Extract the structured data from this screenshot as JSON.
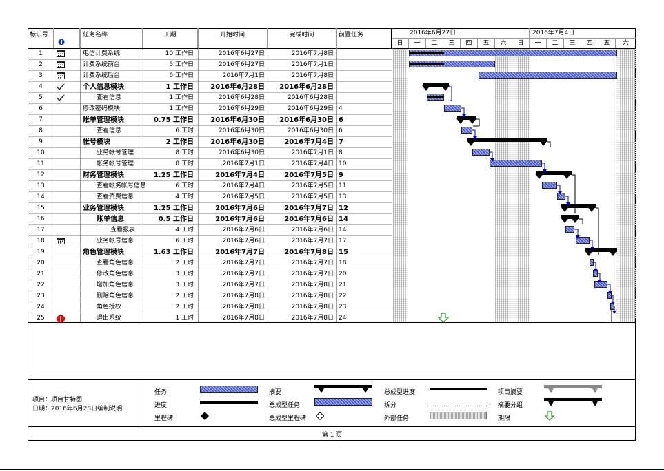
{
  "columns": {
    "id": "标识号",
    "name": "任务名称",
    "duration": "工期",
    "start": "开始时间",
    "finish": "完成时间",
    "predecessors": "前置任务"
  },
  "weeks": [
    "2016年6月27日",
    "2016年7月4日"
  ],
  "days": [
    "日",
    "一",
    "二",
    "三",
    "四",
    "五",
    "六",
    "日",
    "一",
    "二",
    "三",
    "四",
    "五",
    "六"
  ],
  "tasks": [
    {
      "id": "1",
      "name": "电信计费系统",
      "duration": "10 工作日",
      "start": "2016年6月27日",
      "finish": "2016年7月8日",
      "pred": "",
      "bold": false,
      "indent": 0,
      "indicator": "calendar"
    },
    {
      "id": "2",
      "name": "计费系统前台",
      "duration": "5 工作日",
      "start": "2016年6月27日",
      "finish": "2016年7月1日",
      "pred": "",
      "bold": false,
      "indent": 0,
      "indicator": "calendar"
    },
    {
      "id": "3",
      "name": "计费系统后台",
      "duration": "6 工作日",
      "start": "2016年7月1日",
      "finish": "2016年7月8日",
      "pred": "",
      "bold": false,
      "indent": 0,
      "indicator": "calendar"
    },
    {
      "id": "4",
      "name": "个人信息模块",
      "duration": "1 工作日",
      "start": "2016年6月28日",
      "finish": "2016年6月28日",
      "pred": "",
      "bold": true,
      "indent": 0,
      "indicator": "check"
    },
    {
      "id": "5",
      "name": "查看信息",
      "duration": "1 工作日",
      "start": "2016年6月28日",
      "finish": "2016年6月28日",
      "pred": "",
      "bold": false,
      "indent": 1,
      "indicator": "check"
    },
    {
      "id": "6",
      "name": "修改密码模块",
      "duration": "1 工作日",
      "start": "2016年6月29日",
      "finish": "2016年6月29日",
      "pred": "4",
      "bold": false,
      "indent": 0,
      "indicator": ""
    },
    {
      "id": "7",
      "name": "账单管理模块",
      "duration": "0.75 工作日",
      "start": "2016年6月30日",
      "finish": "2016年6月30日",
      "pred": "6",
      "bold": true,
      "indent": 0,
      "indicator": ""
    },
    {
      "id": "8",
      "name": "查看信息",
      "duration": "6 工时",
      "start": "2016年6月30日",
      "finish": "2016年6月30日",
      "pred": "6",
      "bold": false,
      "indent": 1,
      "indicator": ""
    },
    {
      "id": "9",
      "name": "帐号模块",
      "duration": "2 工作日",
      "start": "2016年6月30日",
      "finish": "2016年7月4日",
      "pred": "7",
      "bold": true,
      "indent": 0,
      "indicator": ""
    },
    {
      "id": "10",
      "name": "业务帐号管理",
      "duration": "8 工时",
      "start": "2016年6月30日",
      "finish": "2016年7月1日",
      "pred": "8",
      "bold": false,
      "indent": 1,
      "indicator": ""
    },
    {
      "id": "11",
      "name": "帐务帐号管理",
      "duration": "8 工时",
      "start": "2016年7月1日",
      "finish": "2016年7月4日",
      "pred": "10",
      "bold": false,
      "indent": 1,
      "indicator": ""
    },
    {
      "id": "12",
      "name": "财务管理模块",
      "duration": "1.25 工作日",
      "start": "2016年7月4日",
      "finish": "2016年7月5日",
      "pred": "9",
      "bold": true,
      "indent": 0,
      "indicator": ""
    },
    {
      "id": "13",
      "name": "查看帐务帐号信息",
      "duration": "6 工时",
      "start": "2016年7月4日",
      "finish": "2016年7月5日",
      "pred": "11",
      "bold": false,
      "indent": 1,
      "indicator": ""
    },
    {
      "id": "14",
      "name": "查看资费信息",
      "duration": "4 工时",
      "start": "2016年7月5日",
      "finish": "2016年7月5日",
      "pred": "13",
      "bold": false,
      "indent": 1,
      "indicator": ""
    },
    {
      "id": "15",
      "name": "业务管理模块",
      "duration": "1.25 工作日",
      "start": "2016年7月6日",
      "finish": "2016年7月7日",
      "pred": "12",
      "bold": true,
      "indent": 0,
      "indicator": ""
    },
    {
      "id": "16",
      "name": "账单信息",
      "duration": "0.5 工作日",
      "start": "2016年7月6日",
      "finish": "2016年7月6日",
      "pred": "14",
      "bold": true,
      "indent": 1,
      "indicator": ""
    },
    {
      "id": "17",
      "name": "查看报表",
      "duration": "4 工时",
      "start": "2016年7月6日",
      "finish": "2016年7月6日",
      "pred": "14",
      "bold": false,
      "indent": 2,
      "indicator": ""
    },
    {
      "id": "18",
      "name": "业务帐号信息",
      "duration": "6 工时",
      "start": "2016年7月6日",
      "finish": "2016年7月7日",
      "pred": "17",
      "bold": false,
      "indent": 1,
      "indicator": "calendar"
    },
    {
      "id": "19",
      "name": "角色管理模块",
      "duration": "1.63 工作日",
      "start": "2016年7月7日",
      "finish": "2016年7月8日",
      "pred": "15",
      "bold": true,
      "indent": 0,
      "indicator": ""
    },
    {
      "id": "20",
      "name": "查看角色信息",
      "duration": "2 工时",
      "start": "2016年7月7日",
      "finish": "2016年7月7日",
      "pred": "18",
      "bold": false,
      "indent": 1,
      "indicator": ""
    },
    {
      "id": "21",
      "name": "修改角色信息",
      "duration": "3 工时",
      "start": "2016年7月7日",
      "finish": "2016年7月7日",
      "pred": "20",
      "bold": false,
      "indent": 1,
      "indicator": ""
    },
    {
      "id": "22",
      "name": "增加角色信息",
      "duration": "3 工时",
      "start": "2016年7月7日",
      "finish": "2016年7月8日",
      "pred": "21",
      "bold": false,
      "indent": 1,
      "indicator": ""
    },
    {
      "id": "23",
      "name": "删除角色信息",
      "duration": "2 工时",
      "start": "2016年7月8日",
      "finish": "2016年7月8日",
      "pred": "22",
      "bold": false,
      "indent": 1,
      "indicator": ""
    },
    {
      "id": "24",
      "name": "角色授权",
      "duration": "2 工时",
      "start": "2016年7月8日",
      "finish": "2016年7月8日",
      "pred": "23",
      "bold": false,
      "indent": 1,
      "indicator": ""
    },
    {
      "id": "25",
      "name": "退出系统",
      "duration": "1 工时",
      "start": "2016年7月8日",
      "finish": "2016年7月8日",
      "pred": "24",
      "bold": false,
      "indent": 1,
      "indicator": "alert"
    }
  ],
  "footer": {
    "project": "项目：项目甘特图",
    "date": "日期：2016年6月28日编制说明",
    "page": "第 1 页"
  },
  "legend": {
    "task": "任务",
    "progress": "进度",
    "milestone": "里程碑",
    "summary": "摘要",
    "rollup_task": "总成型任务",
    "rollup_milestone": "总成型里程碑",
    "rollup_progress": "总成型进度",
    "split": "拆分",
    "external": "外部任务",
    "project_summary": "项目摘要",
    "group_summary": "摘要分组",
    "deadline": "期限"
  },
  "colors": {
    "task_fill": "#5060d0",
    "link": "#0000cc",
    "deadline": "#2a9a2a",
    "alert": "#e01010"
  }
}
